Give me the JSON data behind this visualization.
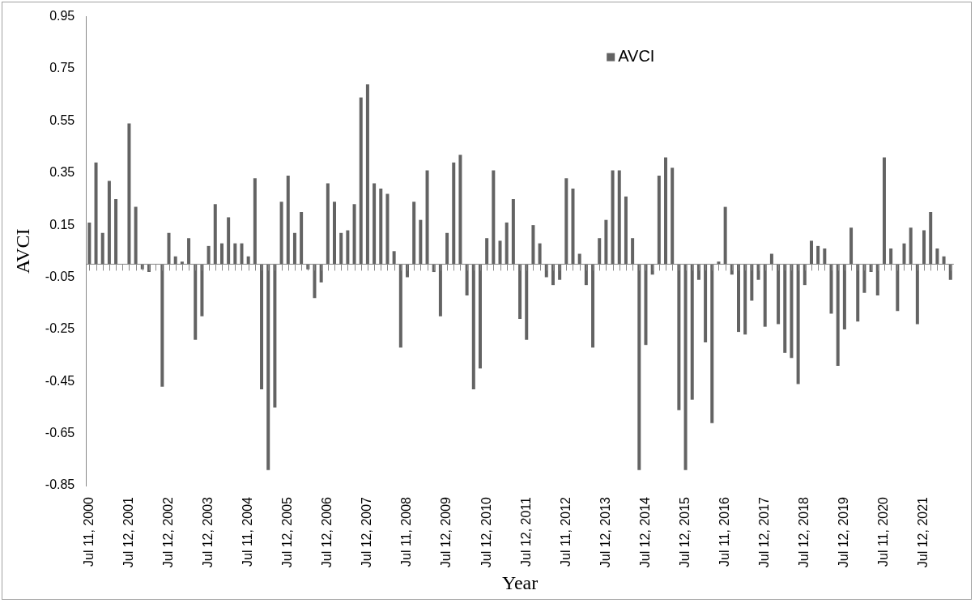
{
  "chart_data": {
    "type": "bar",
    "xlabel": "Year",
    "ylabel": "AVCI",
    "categories": [
      "Jul 11, 2000",
      null,
      null,
      null,
      null,
      null,
      "Jul 12, 2001",
      null,
      null,
      null,
      null,
      null,
      "Jul 12, 2002",
      null,
      null,
      null,
      null,
      null,
      "Jul 12, 2003",
      null,
      null,
      null,
      null,
      null,
      "Jul 11, 2004",
      null,
      null,
      null,
      null,
      null,
      "Jul 12, 2005",
      null,
      null,
      null,
      null,
      null,
      "Jul 12, 2006",
      null,
      null,
      null,
      null,
      null,
      "Jul 12, 2007",
      null,
      null,
      null,
      null,
      null,
      "Jul 11, 2008",
      null,
      null,
      null,
      null,
      null,
      "Jul 12, 2009",
      null,
      null,
      null,
      null,
      null,
      "Jul 12, 2010",
      null,
      null,
      null,
      null,
      null,
      "Jul 12, 2011",
      null,
      null,
      null,
      null,
      null,
      "Jul 11, 2012",
      null,
      null,
      null,
      null,
      null,
      "Jul 12, 2013",
      null,
      null,
      null,
      null,
      null,
      "Jul 12, 2014",
      null,
      null,
      null,
      null,
      null,
      "Jul 12, 2015",
      null,
      null,
      null,
      null,
      null,
      "Jul 11, 2016",
      null,
      null,
      null,
      null,
      null,
      "Jul 12, 2017",
      null,
      null,
      null,
      null,
      null,
      "Jul 12, 2018",
      null,
      null,
      null,
      null,
      null,
      "Jul 12, 2019",
      null,
      null,
      null,
      null,
      null,
      "Jul 11, 2020",
      null,
      null,
      null,
      null,
      null,
      "Jul 12, 2021",
      null,
      null,
      null,
      null
    ],
    "series": [
      {
        "name": "AVCI",
        "color": "#636363",
        "values": [
          0.16,
          0.39,
          0.12,
          0.32,
          0.25,
          0,
          0.54,
          0.22,
          -0.02,
          -0.03,
          0,
          -0.47,
          0.12,
          0.03,
          0.01,
          0.1,
          -0.29,
          -0.2,
          0.07,
          0.23,
          0.08,
          0.18,
          0.08,
          0.08,
          0.03,
          0.33,
          -0.48,
          -0.79,
          -0.55,
          0.24,
          0.34,
          0.12,
          0.2,
          -0.02,
          -0.13,
          -0.07,
          0.31,
          0.24,
          0.12,
          0.13,
          0.23,
          0.64,
          0.69,
          0.31,
          0.29,
          0.27,
          0.05,
          -0.32,
          -0.05,
          0.24,
          0.17,
          0.36,
          -0.03,
          -0.2,
          0.12,
          0.39,
          0.42,
          -0.12,
          -0.48,
          -0.4,
          0.1,
          0.36,
          0.09,
          0.16,
          0.25,
          -0.21,
          -0.29,
          0.15,
          0.08,
          -0.05,
          -0.08,
          -0.06,
          0.33,
          0.29,
          0.04,
          -0.08,
          -0.32,
          0.1,
          0.17,
          0.36,
          0.36,
          0.26,
          0.1,
          -0.79,
          -0.31,
          -0.04,
          0.34,
          0.41,
          0.37,
          -0.56,
          -0.79,
          -0.52,
          -0.06,
          -0.3,
          -0.61,
          0.01,
          0.22,
          -0.04,
          -0.26,
          -0.27,
          -0.14,
          -0.06,
          -0.24,
          0.04,
          -0.23,
          -0.34,
          -0.36,
          -0.46,
          -0.08,
          0.09,
          0.07,
          0.06,
          -0.19,
          -0.39,
          -0.25,
          0.14,
          -0.22,
          -0.11,
          -0.03,
          -0.12,
          0.41,
          0.06,
          -0.18,
          0.08,
          0.14,
          -0.23,
          0.13,
          0.2,
          0.06,
          0.03,
          -0.06
        ]
      }
    ],
    "ylim": [
      -0.85,
      0.95
    ],
    "yticks": [
      -0.85,
      -0.65,
      -0.45,
      -0.25,
      -0.05,
      0.15,
      0.35,
      0.55,
      0.75,
      0.95
    ],
    "legend": "top right"
  }
}
